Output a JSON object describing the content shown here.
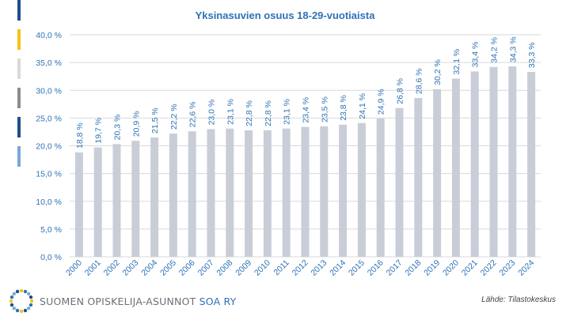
{
  "chart_data": {
    "type": "bar",
    "title": "Yksinasuvien osuus 18-29-vuotiaista",
    "categories": [
      "2000",
      "2001",
      "2002",
      "2003",
      "2004",
      "2005",
      "2006",
      "2007",
      "2008",
      "2009",
      "2010",
      "2011",
      "2012",
      "2013",
      "2014",
      "2015",
      "2016",
      "2017",
      "2018",
      "2019",
      "2020",
      "2021",
      "2022",
      "2023",
      "2024"
    ],
    "values": [
      18.8,
      19.7,
      20.3,
      20.9,
      21.5,
      22.2,
      22.6,
      23.0,
      23.1,
      22.8,
      22.8,
      23.1,
      23.4,
      23.5,
      23.8,
      24.1,
      24.9,
      26.8,
      28.6,
      30.2,
      32.1,
      33.4,
      34.2,
      34.3,
      33.3
    ],
    "data_labels": [
      "18,8 %",
      "19,7 %",
      "20,3 %",
      "20,9 %",
      "21,5 %",
      "22,2 %",
      "22,6 %",
      "23,0 %",
      "23,1 %",
      "22,8 %",
      "22,8 %",
      "23,1 %",
      "23,4 %",
      "23,5 %",
      "23,8 %",
      "24,1 %",
      "24,9 %",
      "26,8 %",
      "28,6 %",
      "30,2 %",
      "32,1 %",
      "33,4 %",
      "34,2 %",
      "34,3 %",
      "33,3 %"
    ],
    "y_ticks": [
      0,
      5,
      10,
      15,
      20,
      25,
      30,
      35,
      40
    ],
    "y_tick_labels": [
      "0,0 %",
      "5,0 %",
      "10,0 %",
      "15,0 %",
      "20,0 %",
      "25,0 %",
      "30,0 %",
      "35,0 %",
      "40,0 %"
    ],
    "ylim": [
      0,
      40
    ],
    "grid": true,
    "legend": "none",
    "colors": {
      "bar": "#c9cdd8",
      "label": "#2e72b6",
      "axis_text": "#2e72b6",
      "grid": "#d9d9d9"
    }
  },
  "footer": {
    "org_name": "SUOMEN OPISKELIJA-ASUNNOT",
    "org_abbr": "SOA RY",
    "source": "Lähde: Tilastokeskus"
  },
  "decor": {
    "side_bar_colors": [
      "#1f4e8c",
      "#f2c318",
      "#d9d9d9",
      "#8c8c8c",
      "#1f4e8c",
      "#7aa7d8"
    ],
    "logo_colors": [
      "#f2c318",
      "#2e72b6",
      "#7aa7d8",
      "#1f4e8c"
    ]
  }
}
